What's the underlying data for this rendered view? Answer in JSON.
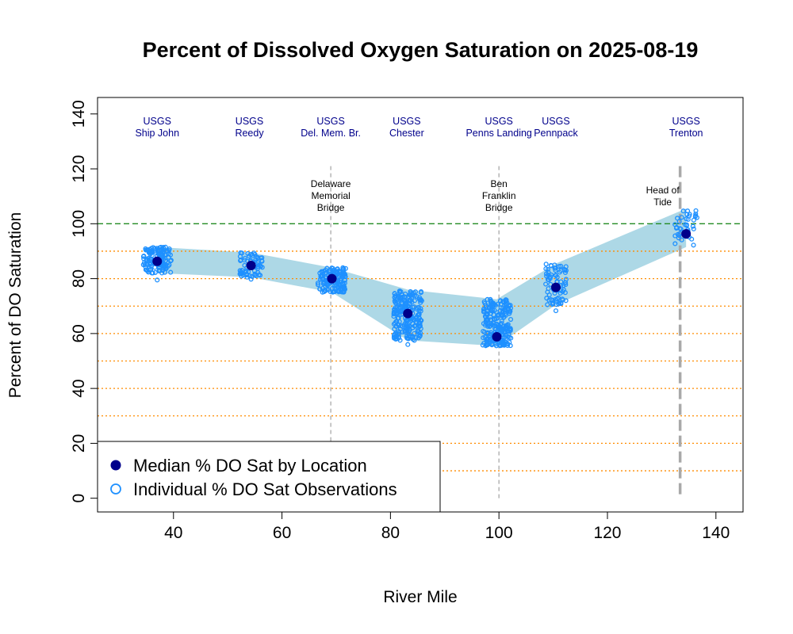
{
  "chart_data": {
    "type": "scatter",
    "title": "Percent of Dissolved Oxygen Saturation on  2025-08-19",
    "xlabel": "River Mile",
    "ylabel": "Percent of DO Saturation",
    "xlim": [
      26,
      145
    ],
    "ylim": [
      -5,
      146
    ],
    "x_ticks": [
      40,
      60,
      80,
      100,
      120,
      140
    ],
    "y_ticks": [
      0,
      20,
      40,
      60,
      80,
      100,
      120,
      140
    ],
    "reference_lines": {
      "saturation_100": {
        "y": 100,
        "color": "#228b22",
        "style": "dashed"
      },
      "orange_dotted": {
        "y": [
          10,
          20,
          30,
          40,
          50,
          60,
          70,
          80,
          90
        ],
        "color": "#ff8c00",
        "style": "dotted"
      }
    },
    "landmarks": [
      {
        "x": 69,
        "label_lines": [
          "Delaware",
          "Memorial",
          "Bridge"
        ],
        "line_top": 121,
        "style": "thin-dashed"
      },
      {
        "x": 100,
        "label_lines": [
          "Ben",
          "Franklin",
          "Bridge"
        ],
        "line_top": 121,
        "style": "thin-dashed"
      },
      {
        "x": 133.4,
        "label_lines": [
          "Head of",
          "Tide"
        ],
        "line_top": 121,
        "style": "thick-dashed"
      }
    ],
    "stations": [
      {
        "x": 37,
        "lines": [
          "USGS",
          "Ship John"
        ]
      },
      {
        "x": 54,
        "lines": [
          "USGS",
          "Reedy"
        ]
      },
      {
        "x": 69,
        "lines": [
          "USGS",
          "Del. Mem. Br."
        ]
      },
      {
        "x": 83,
        "lines": [
          "USGS",
          "Chester"
        ]
      },
      {
        "x": 100,
        "lines": [
          "USGS",
          "Penns Landing"
        ]
      },
      {
        "x": 110.5,
        "lines": [
          "USGS",
          "Pennpack"
        ]
      },
      {
        "x": 134.5,
        "lines": [
          "USGS",
          "Trenton"
        ]
      }
    ],
    "series": [
      {
        "name": "Median % DO Sat by Location",
        "color": "#00008b",
        "points": [
          {
            "x": 37,
            "y": 86.3
          },
          {
            "x": 54.3,
            "y": 84.8
          },
          {
            "x": 69.2,
            "y": 80
          },
          {
            "x": 83.2,
            "y": 67.3
          },
          {
            "x": 99.6,
            "y": 58.8
          },
          {
            "x": 110.5,
            "y": 76.8
          },
          {
            "x": 134.5,
            "y": 96.3
          }
        ]
      },
      {
        "name": "Individual % DO Sat Observations",
        "color": "#1e90ff",
        "clusters": [
          {
            "x_center": 37,
            "x_spread": 2.6,
            "y_min": 82,
            "y_max": 91.5,
            "count": 140,
            "extra": [
              79.5
            ]
          },
          {
            "x_center": 54.3,
            "x_spread": 2.1,
            "y_min": 80.5,
            "y_max": 89.5,
            "count": 70,
            "extra": [
              79.8
            ]
          },
          {
            "x_center": 69.2,
            "x_spread": 2.6,
            "y_min": 75,
            "y_max": 84,
            "count": 140,
            "extra": []
          },
          {
            "x_center": 83.2,
            "x_spread": 2.6,
            "y_min": 57.5,
            "y_max": 76,
            "count": 230,
            "extra": [
              56
            ]
          },
          {
            "x_center": 99.6,
            "x_spread": 2.6,
            "y_min": 55.5,
            "y_max": 72.5,
            "count": 230,
            "extra": []
          },
          {
            "x_center": 110.5,
            "x_spread": 2.0,
            "y_min": 70.5,
            "y_max": 85.5,
            "count": 75,
            "extra": [
              68.3
            ]
          },
          {
            "x_center": 134.5,
            "x_spread": 2.1,
            "y_min": 91.5,
            "y_max": 105.5,
            "count": 40,
            "extra": []
          }
        ]
      }
    ],
    "range_band": {
      "color": "#add8e6",
      "upper": [
        {
          "x": 37,
          "y": 91.5
        },
        {
          "x": 54.3,
          "y": 89.5
        },
        {
          "x": 69.2,
          "y": 84
        },
        {
          "x": 83.2,
          "y": 76
        },
        {
          "x": 99.6,
          "y": 72.5
        },
        {
          "x": 110.5,
          "y": 85.5
        },
        {
          "x": 134.5,
          "y": 105.5
        }
      ],
      "lower": [
        {
          "x": 37,
          "y": 82
        },
        {
          "x": 54.3,
          "y": 80.5
        },
        {
          "x": 69.2,
          "y": 75
        },
        {
          "x": 83.2,
          "y": 57.5
        },
        {
          "x": 99.6,
          "y": 55.5
        },
        {
          "x": 110.5,
          "y": 70.5
        },
        {
          "x": 134.5,
          "y": 91.5
        }
      ]
    },
    "legend": {
      "position": "bottom-left",
      "entries": [
        {
          "label": "Median % DO Sat by Location",
          "marker": "filled-circle",
          "color": "#00008b"
        },
        {
          "label": "Individual % DO Sat Observations",
          "marker": "open-circle",
          "color": "#1e90ff"
        }
      ]
    },
    "grid": false
  }
}
